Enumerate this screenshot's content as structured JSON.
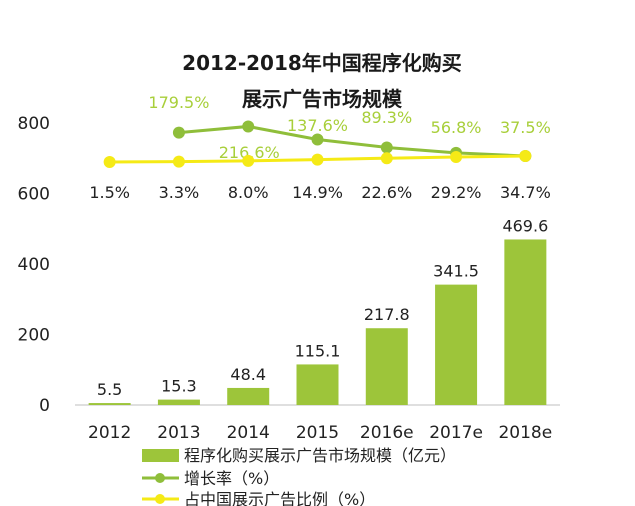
{
  "chart_data": {
    "type": "bar",
    "title_lines": [
      "2012-2018年中国程序化购买",
      "展示广告市场规模"
    ],
    "categories": [
      "2012",
      "2013",
      "2014",
      "2015",
      "2016e",
      "2017e",
      "2018e"
    ],
    "ylim": [
      0,
      800
    ],
    "yticks": [
      "0",
      "200",
      "400",
      "600",
      "800"
    ],
    "series": [
      {
        "name": "程序化购买展示广告市场规模（亿元）",
        "type": "bar",
        "values": [
          5.5,
          15.3,
          48.4,
          115.1,
          217.8,
          341.5,
          469.6
        ],
        "labels": [
          "5.5",
          "15.3",
          "48.4",
          "115.1",
          "217.8",
          "341.5",
          "469.6"
        ]
      },
      {
        "name": "增长率（%）",
        "type": "line",
        "values": [
          null,
          179.5,
          216.6,
          137.6,
          89.3,
          56.8,
          37.5
        ],
        "labels": [
          "",
          "179.5%",
          "216.6%",
          "137.6%",
          "89.3%",
          "56.8%",
          "37.5%"
        ]
      },
      {
        "name": "占中国展示广告比例（%）",
        "type": "line",
        "values": [
          1.5,
          3.3,
          8.0,
          14.9,
          22.6,
          29.2,
          34.7
        ],
        "labels": [
          "1.5%",
          "3.3%",
          "8.0%",
          "14.9%",
          "22.6%",
          "29.2%",
          "34.7%"
        ]
      }
    ],
    "colors": {
      "bar": "#9dc53a",
      "growth": "#8fbe3a",
      "share": "#f5ea16",
      "growth_label": "#a8cf3a"
    },
    "legend_position": "bottom",
    "grid": false
  }
}
